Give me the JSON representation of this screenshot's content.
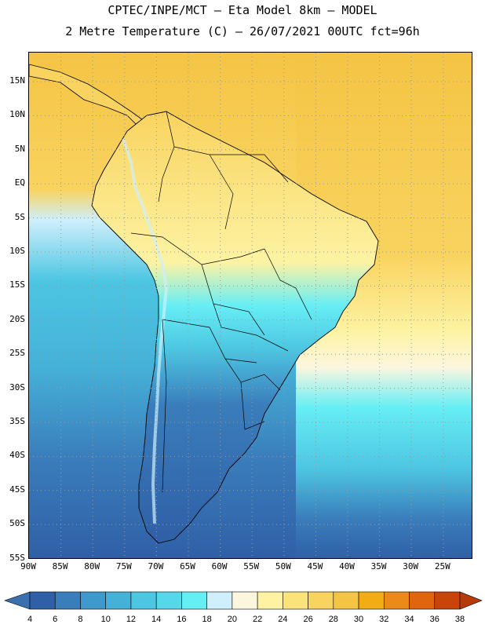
{
  "header": {
    "line1": "CPTEC/INPE/MCT –  Eta Model 8km – MODEL",
    "line2": "2 Metre Temperature (C) – 26/07/2021 00UTC fct=96h"
  },
  "lat_labels": [
    "15N",
    "10N",
    "5N",
    "EQ",
    "5S",
    "10S",
    "15S",
    "20S",
    "25S",
    "30S",
    "35S",
    "40S",
    "45S",
    "50S",
    "55S"
  ],
  "lon_labels": [
    "90W",
    "85W",
    "80W",
    "75W",
    "70W",
    "65W",
    "60W",
    "55W",
    "50W",
    "45W",
    "40W",
    "35W",
    "30W",
    "25W"
  ],
  "colorbar": {
    "labels": [
      "4",
      "6",
      "8",
      "10",
      "12",
      "14",
      "16",
      "18",
      "20",
      "22",
      "24",
      "26",
      "28",
      "30",
      "32",
      "34",
      "36",
      "38"
    ],
    "colors": [
      "#2f5fa6",
      "#3a7dbb",
      "#3f99cc",
      "#45b1d8",
      "#4dc6e2",
      "#55d9ea",
      "#66eef5",
      "#cfeffc",
      "#fdf6df",
      "#fdf3a3",
      "#fce27a",
      "#f9d35f",
      "#f4c444",
      "#f1ad13",
      "#ea8a18",
      "#e0650e",
      "#c8440a"
    ],
    "low_color": "#3a6fb0",
    "high_color": "#b73a0b"
  },
  "map": {
    "ocean_pacific_color": "#4dc6e2",
    "ocean_atlantic_north_color": "#f4c444",
    "ocean_south_color": "#2f5fa6",
    "land_north_color": "#fce27a",
    "land_south_color": "#3a7dbb"
  }
}
